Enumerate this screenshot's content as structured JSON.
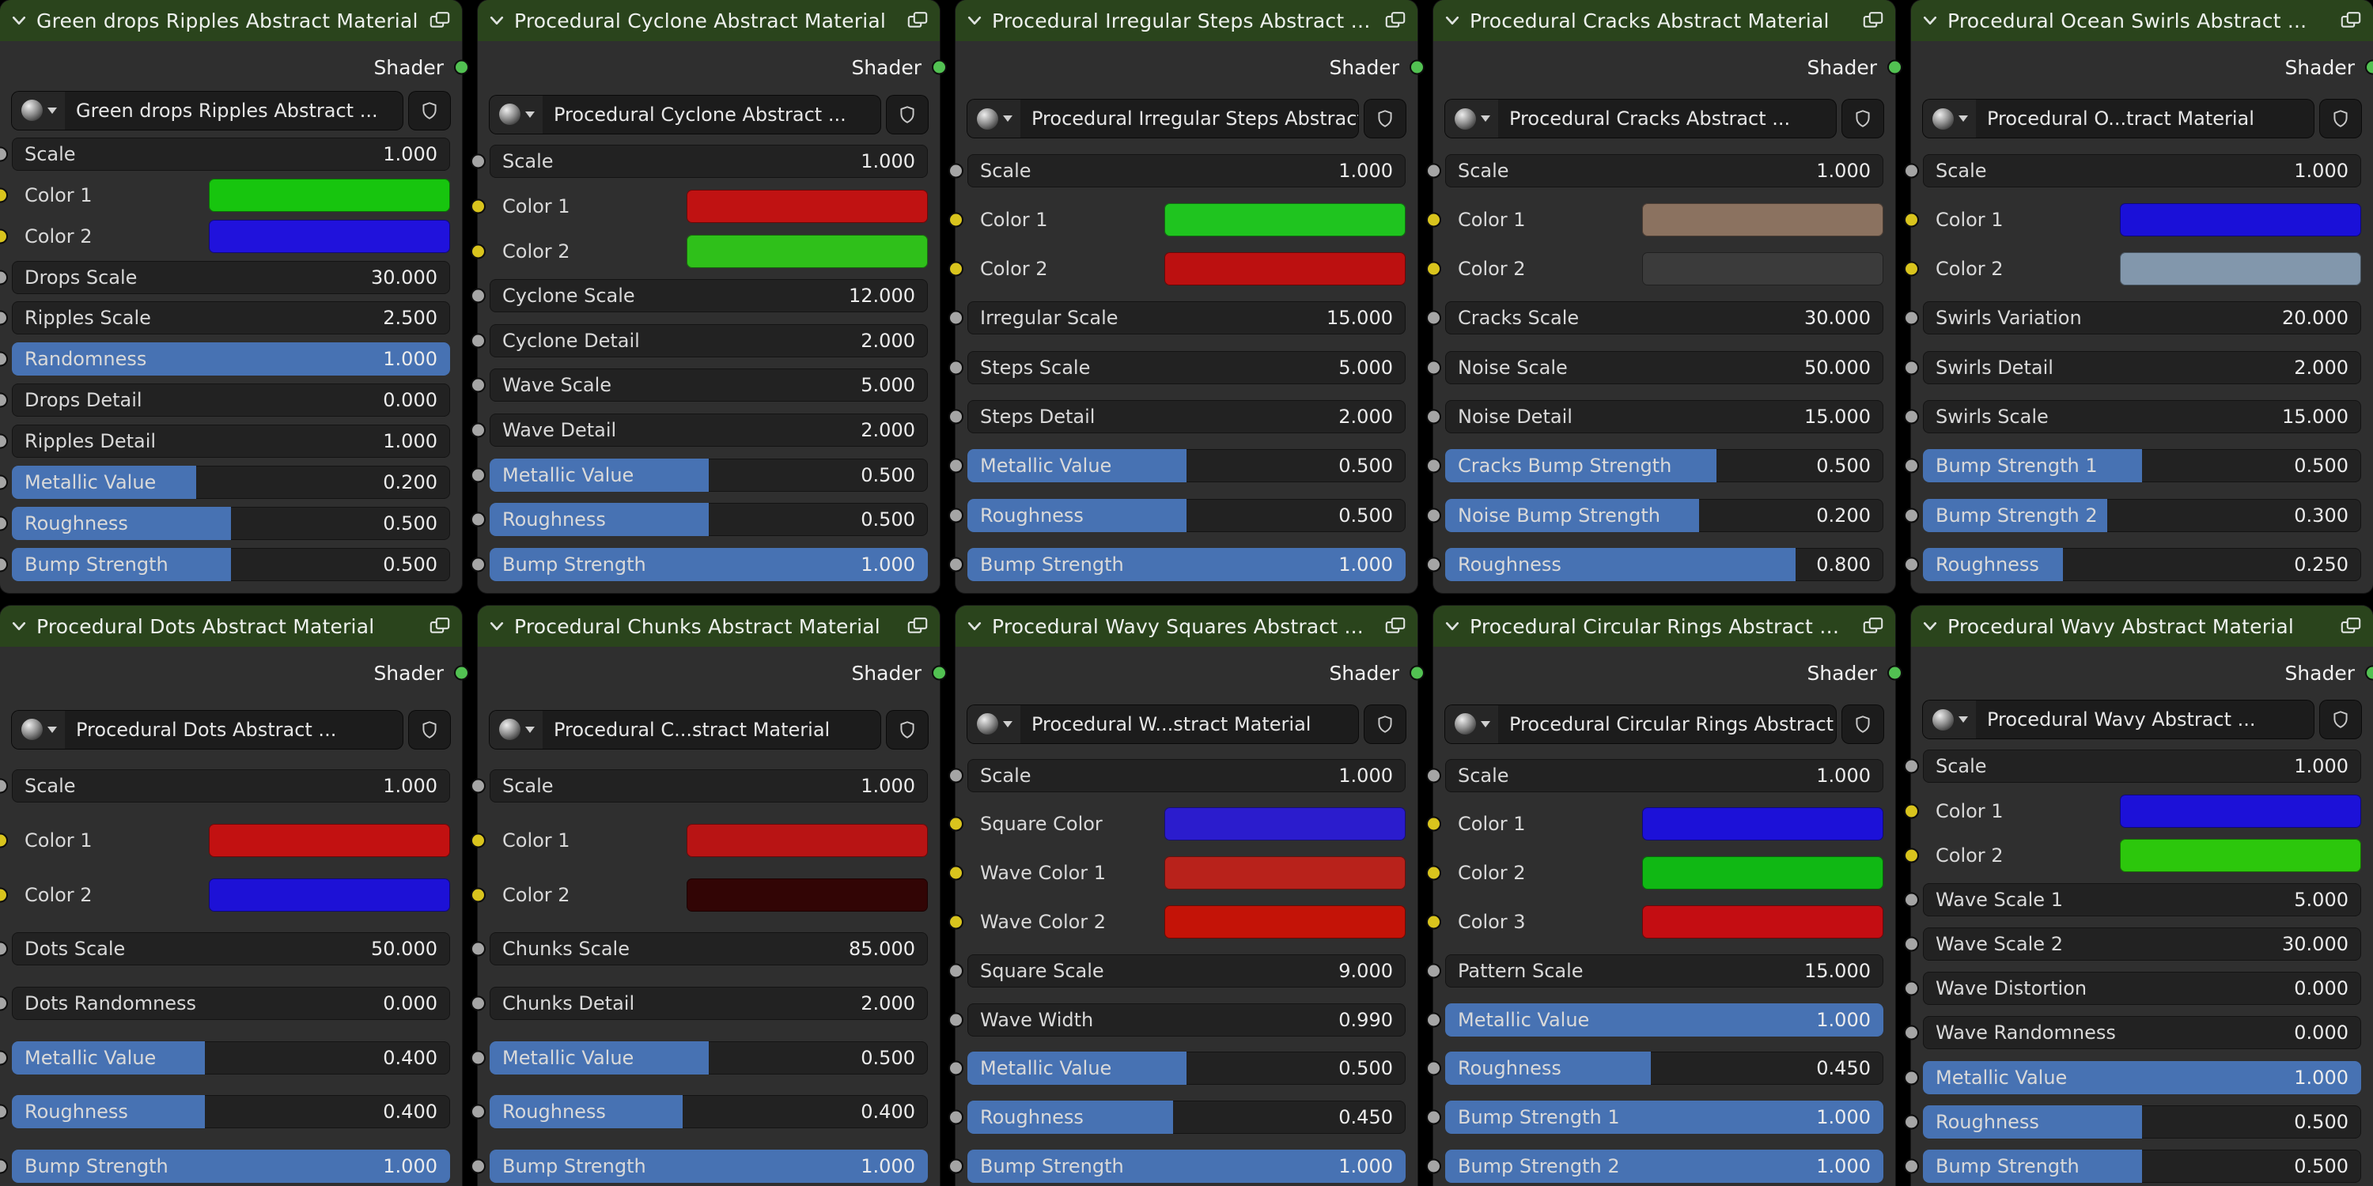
{
  "colors": {
    "node_header_green": "#2a441c",
    "slider_fill_blue": "#4772b3",
    "socket_value_gray": "#a5a5a5",
    "socket_color_yellow": "#d9c41d",
    "socket_shader_green": "#52c152"
  },
  "panels": [
    {
      "title": "Green drops Ripples Abstract Material",
      "output_label": "Shader",
      "material_name": "Green drops Ripples Abstract ...",
      "rows": [
        {
          "type": "number",
          "label": "Scale",
          "value": "1.000"
        },
        {
          "type": "color",
          "label": "Color 1",
          "swatch": "#17c50e"
        },
        {
          "type": "color",
          "label": "Color 2",
          "swatch": "#2012dc"
        },
        {
          "type": "number",
          "label": "Drops Scale",
          "value": "30.000"
        },
        {
          "type": "number",
          "label": "Ripples Scale",
          "value": "2.500"
        },
        {
          "type": "slider",
          "label": "Randomness",
          "value": "1.000",
          "fill": 1.0
        },
        {
          "type": "number",
          "label": "Drops Detail",
          "value": "0.000"
        },
        {
          "type": "number",
          "label": "Ripples Detail",
          "value": "1.000"
        },
        {
          "type": "slider",
          "label": "Metallic Value",
          "value": "0.200",
          "fill": 0.42
        },
        {
          "type": "slider",
          "label": "Roughness",
          "value": "0.500",
          "fill": 0.5
        },
        {
          "type": "slider",
          "label": "Bump Strength",
          "value": "0.500",
          "fill": 0.5
        }
      ]
    },
    {
      "title": "Procedural Cyclone Abstract Material",
      "output_label": "Shader",
      "material_name": "Procedural Cyclone Abstract ...",
      "rows": [
        {
          "type": "number",
          "label": "Scale",
          "value": "1.000"
        },
        {
          "type": "color",
          "label": "Color 1",
          "swatch": "#c01212"
        },
        {
          "type": "color",
          "label": "Color 2",
          "swatch": "#2fc01a"
        },
        {
          "type": "number",
          "label": "Cyclone Scale",
          "value": "12.000"
        },
        {
          "type": "number",
          "label": "Cyclone Detail",
          "value": "2.000"
        },
        {
          "type": "number",
          "label": "Wave Scale",
          "value": "5.000"
        },
        {
          "type": "number",
          "label": "Wave Detail",
          "value": "2.000"
        },
        {
          "type": "slider",
          "label": "Metallic Value",
          "value": "0.500",
          "fill": 0.5
        },
        {
          "type": "slider",
          "label": "Roughness",
          "value": "0.500",
          "fill": 0.5
        },
        {
          "type": "slider",
          "label": "Bump Strength",
          "value": "1.000",
          "fill": 1.0
        }
      ]
    },
    {
      "title": "Procedural Irregular Steps Abstract Material",
      "output_label": "Shader",
      "material_name": "Procedural Irregular Steps Abstract ...",
      "rows": [
        {
          "type": "number",
          "label": "Scale",
          "value": "1.000"
        },
        {
          "type": "color",
          "label": "Color 1",
          "swatch": "#1fc41f"
        },
        {
          "type": "color",
          "label": "Color 2",
          "swatch": "#bc1010"
        },
        {
          "type": "number",
          "label": "Irregular Scale",
          "value": "15.000"
        },
        {
          "type": "number",
          "label": "Steps Scale",
          "value": "5.000"
        },
        {
          "type": "number",
          "label": "Steps Detail",
          "value": "2.000"
        },
        {
          "type": "slider",
          "label": "Metallic Value",
          "value": "0.500",
          "fill": 0.5
        },
        {
          "type": "slider",
          "label": "Roughness",
          "value": "0.500",
          "fill": 0.5
        },
        {
          "type": "slider",
          "label": "Bump Strength",
          "value": "1.000",
          "fill": 1.0
        }
      ]
    },
    {
      "title": "Procedural Cracks Abstract Material",
      "output_label": "Shader",
      "material_name": "Procedural Cracks Abstract ...",
      "rows": [
        {
          "type": "number",
          "label": "Scale",
          "value": "1.000"
        },
        {
          "type": "color",
          "label": "Color 1",
          "swatch": "#8b7260"
        },
        {
          "type": "color",
          "label": "Color 2",
          "swatch": "#3b3b3b"
        },
        {
          "type": "number",
          "label": "Cracks Scale",
          "value": "30.000"
        },
        {
          "type": "number",
          "label": "Noise Scale",
          "value": "50.000"
        },
        {
          "type": "number",
          "label": "Noise Detail",
          "value": "15.000"
        },
        {
          "type": "slider",
          "label": "Cracks Bump Strength",
          "value": "0.500",
          "fill": 0.62
        },
        {
          "type": "slider",
          "label": "Noise Bump Strength",
          "value": "0.200",
          "fill": 0.58
        },
        {
          "type": "slider",
          "label": "Roughness",
          "value": "0.800",
          "fill": 0.8
        }
      ]
    },
    {
      "title": "Procedural Ocean Swirls Abstract ...",
      "output_label": "Shader",
      "material_name": "Procedural O...tract Material",
      "rows": [
        {
          "type": "number",
          "label": "Scale",
          "value": "1.000"
        },
        {
          "type": "color",
          "label": "Color 1",
          "swatch": "#1a10d8"
        },
        {
          "type": "color",
          "label": "Color 2",
          "swatch": "#8297ac"
        },
        {
          "type": "number",
          "label": "Swirls Variation",
          "value": "20.000"
        },
        {
          "type": "number",
          "label": "Swirls Detail",
          "value": "2.000"
        },
        {
          "type": "number",
          "label": "Swirls Scale",
          "value": "15.000"
        },
        {
          "type": "slider",
          "label": "Bump Strength 1",
          "value": "0.500",
          "fill": 0.5
        },
        {
          "type": "slider",
          "label": "Bump Strength 2",
          "value": "0.300",
          "fill": 0.42
        },
        {
          "type": "slider",
          "label": "Roughness",
          "value": "0.250",
          "fill": 0.32
        }
      ]
    },
    {
      "title": "Procedural Dots Abstract Material",
      "output_label": "Shader",
      "material_name": "Procedural Dots Abstract ...",
      "rows": [
        {
          "type": "number",
          "label": "Scale",
          "value": "1.000"
        },
        {
          "type": "color",
          "label": "Color 1",
          "swatch": "#c21111"
        },
        {
          "type": "color",
          "label": "Color 2",
          "swatch": "#1d11d6"
        },
        {
          "type": "number",
          "label": "Dots Scale",
          "value": "50.000"
        },
        {
          "type": "number",
          "label": "Dots Randomness",
          "value": "0.000"
        },
        {
          "type": "slider",
          "label": "Metallic Value",
          "value": "0.400",
          "fill": 0.44
        },
        {
          "type": "slider",
          "label": "Roughness",
          "value": "0.400",
          "fill": 0.44
        },
        {
          "type": "slider",
          "label": "Bump Strength",
          "value": "1.000",
          "fill": 1.0
        }
      ]
    },
    {
      "title": "Procedural Chunks Abstract Material",
      "output_label": "Shader",
      "material_name": "Procedural C...stract Material",
      "rows": [
        {
          "type": "number",
          "label": "Scale",
          "value": "1.000"
        },
        {
          "type": "color",
          "label": "Color 1",
          "swatch": "#b81414"
        },
        {
          "type": "color",
          "label": "Color 2",
          "swatch": "#320505"
        },
        {
          "type": "number",
          "label": "Chunks Scale",
          "value": "85.000"
        },
        {
          "type": "number",
          "label": "Chunks Detail",
          "value": "2.000"
        },
        {
          "type": "slider",
          "label": "Metallic Value",
          "value": "0.500",
          "fill": 0.5
        },
        {
          "type": "slider",
          "label": "Roughness",
          "value": "0.400",
          "fill": 0.44
        },
        {
          "type": "slider",
          "label": "Bump Strength",
          "value": "1.000",
          "fill": 1.0
        }
      ]
    },
    {
      "title": "Procedural Wavy Squares Abstract ...",
      "output_label": "Shader",
      "material_name": "Procedural W...stract Material",
      "rows": [
        {
          "type": "number",
          "label": "Scale",
          "value": "1.000"
        },
        {
          "type": "color",
          "label": "Square Color",
          "swatch": "#2b1ccd"
        },
        {
          "type": "color",
          "label": "Wave Color 1",
          "swatch": "#b8221b"
        },
        {
          "type": "color",
          "label": "Wave Color 2",
          "swatch": "#c41307"
        },
        {
          "type": "number",
          "label": "Square Scale",
          "value": "9.000"
        },
        {
          "type": "number",
          "label": "Wave Width",
          "value": "0.990"
        },
        {
          "type": "slider",
          "label": "Metallic Value",
          "value": "0.500",
          "fill": 0.5
        },
        {
          "type": "slider",
          "label": "Roughness",
          "value": "0.450",
          "fill": 0.47
        },
        {
          "type": "slider",
          "label": "Bump Strength",
          "value": "1.000",
          "fill": 1.0
        }
      ]
    },
    {
      "title": "Procedural Circular Rings Abstract Material",
      "output_label": "Shader",
      "material_name": "Procedural Circular Rings Abstract ...",
      "rows": [
        {
          "type": "number",
          "label": "Scale",
          "value": "1.000"
        },
        {
          "type": "color",
          "label": "Color 1",
          "swatch": "#1c11d8"
        },
        {
          "type": "color",
          "label": "Color 2",
          "swatch": "#10b814"
        },
        {
          "type": "color",
          "label": "Color 3",
          "swatch": "#c40d12"
        },
        {
          "type": "number",
          "label": "Pattern Scale",
          "value": "15.000"
        },
        {
          "type": "slider",
          "label": "Metallic Value",
          "value": "1.000",
          "fill": 1.0
        },
        {
          "type": "slider",
          "label": "Roughness",
          "value": "0.450",
          "fill": 0.47
        },
        {
          "type": "slider",
          "label": "Bump Strength 1",
          "value": "1.000",
          "fill": 1.0
        },
        {
          "type": "slider",
          "label": "Bump Strength 2",
          "value": "1.000",
          "fill": 1.0
        }
      ]
    },
    {
      "title": "Procedural Wavy Abstract Material",
      "output_label": "Shader",
      "material_name": "Procedural Wavy Abstract ...",
      "rows": [
        {
          "type": "number",
          "label": "Scale",
          "value": "1.000"
        },
        {
          "type": "color",
          "label": "Color 1",
          "swatch": "#1c11d8"
        },
        {
          "type": "color",
          "label": "Color 2",
          "swatch": "#2cc70c"
        },
        {
          "type": "number",
          "label": "Wave Scale 1",
          "value": "5.000"
        },
        {
          "type": "number",
          "label": "Wave Scale 2",
          "value": "30.000"
        },
        {
          "type": "number",
          "label": "Wave Distortion",
          "value": "0.000"
        },
        {
          "type": "number",
          "label": "Wave Randomness",
          "value": "0.000"
        },
        {
          "type": "slider",
          "label": "Metallic Value",
          "value": "1.000",
          "fill": 1.0
        },
        {
          "type": "slider",
          "label": "Roughness",
          "value": "0.500",
          "fill": 0.5
        },
        {
          "type": "slider",
          "label": "Bump Strength",
          "value": "0.500",
          "fill": 0.5
        }
      ]
    }
  ]
}
